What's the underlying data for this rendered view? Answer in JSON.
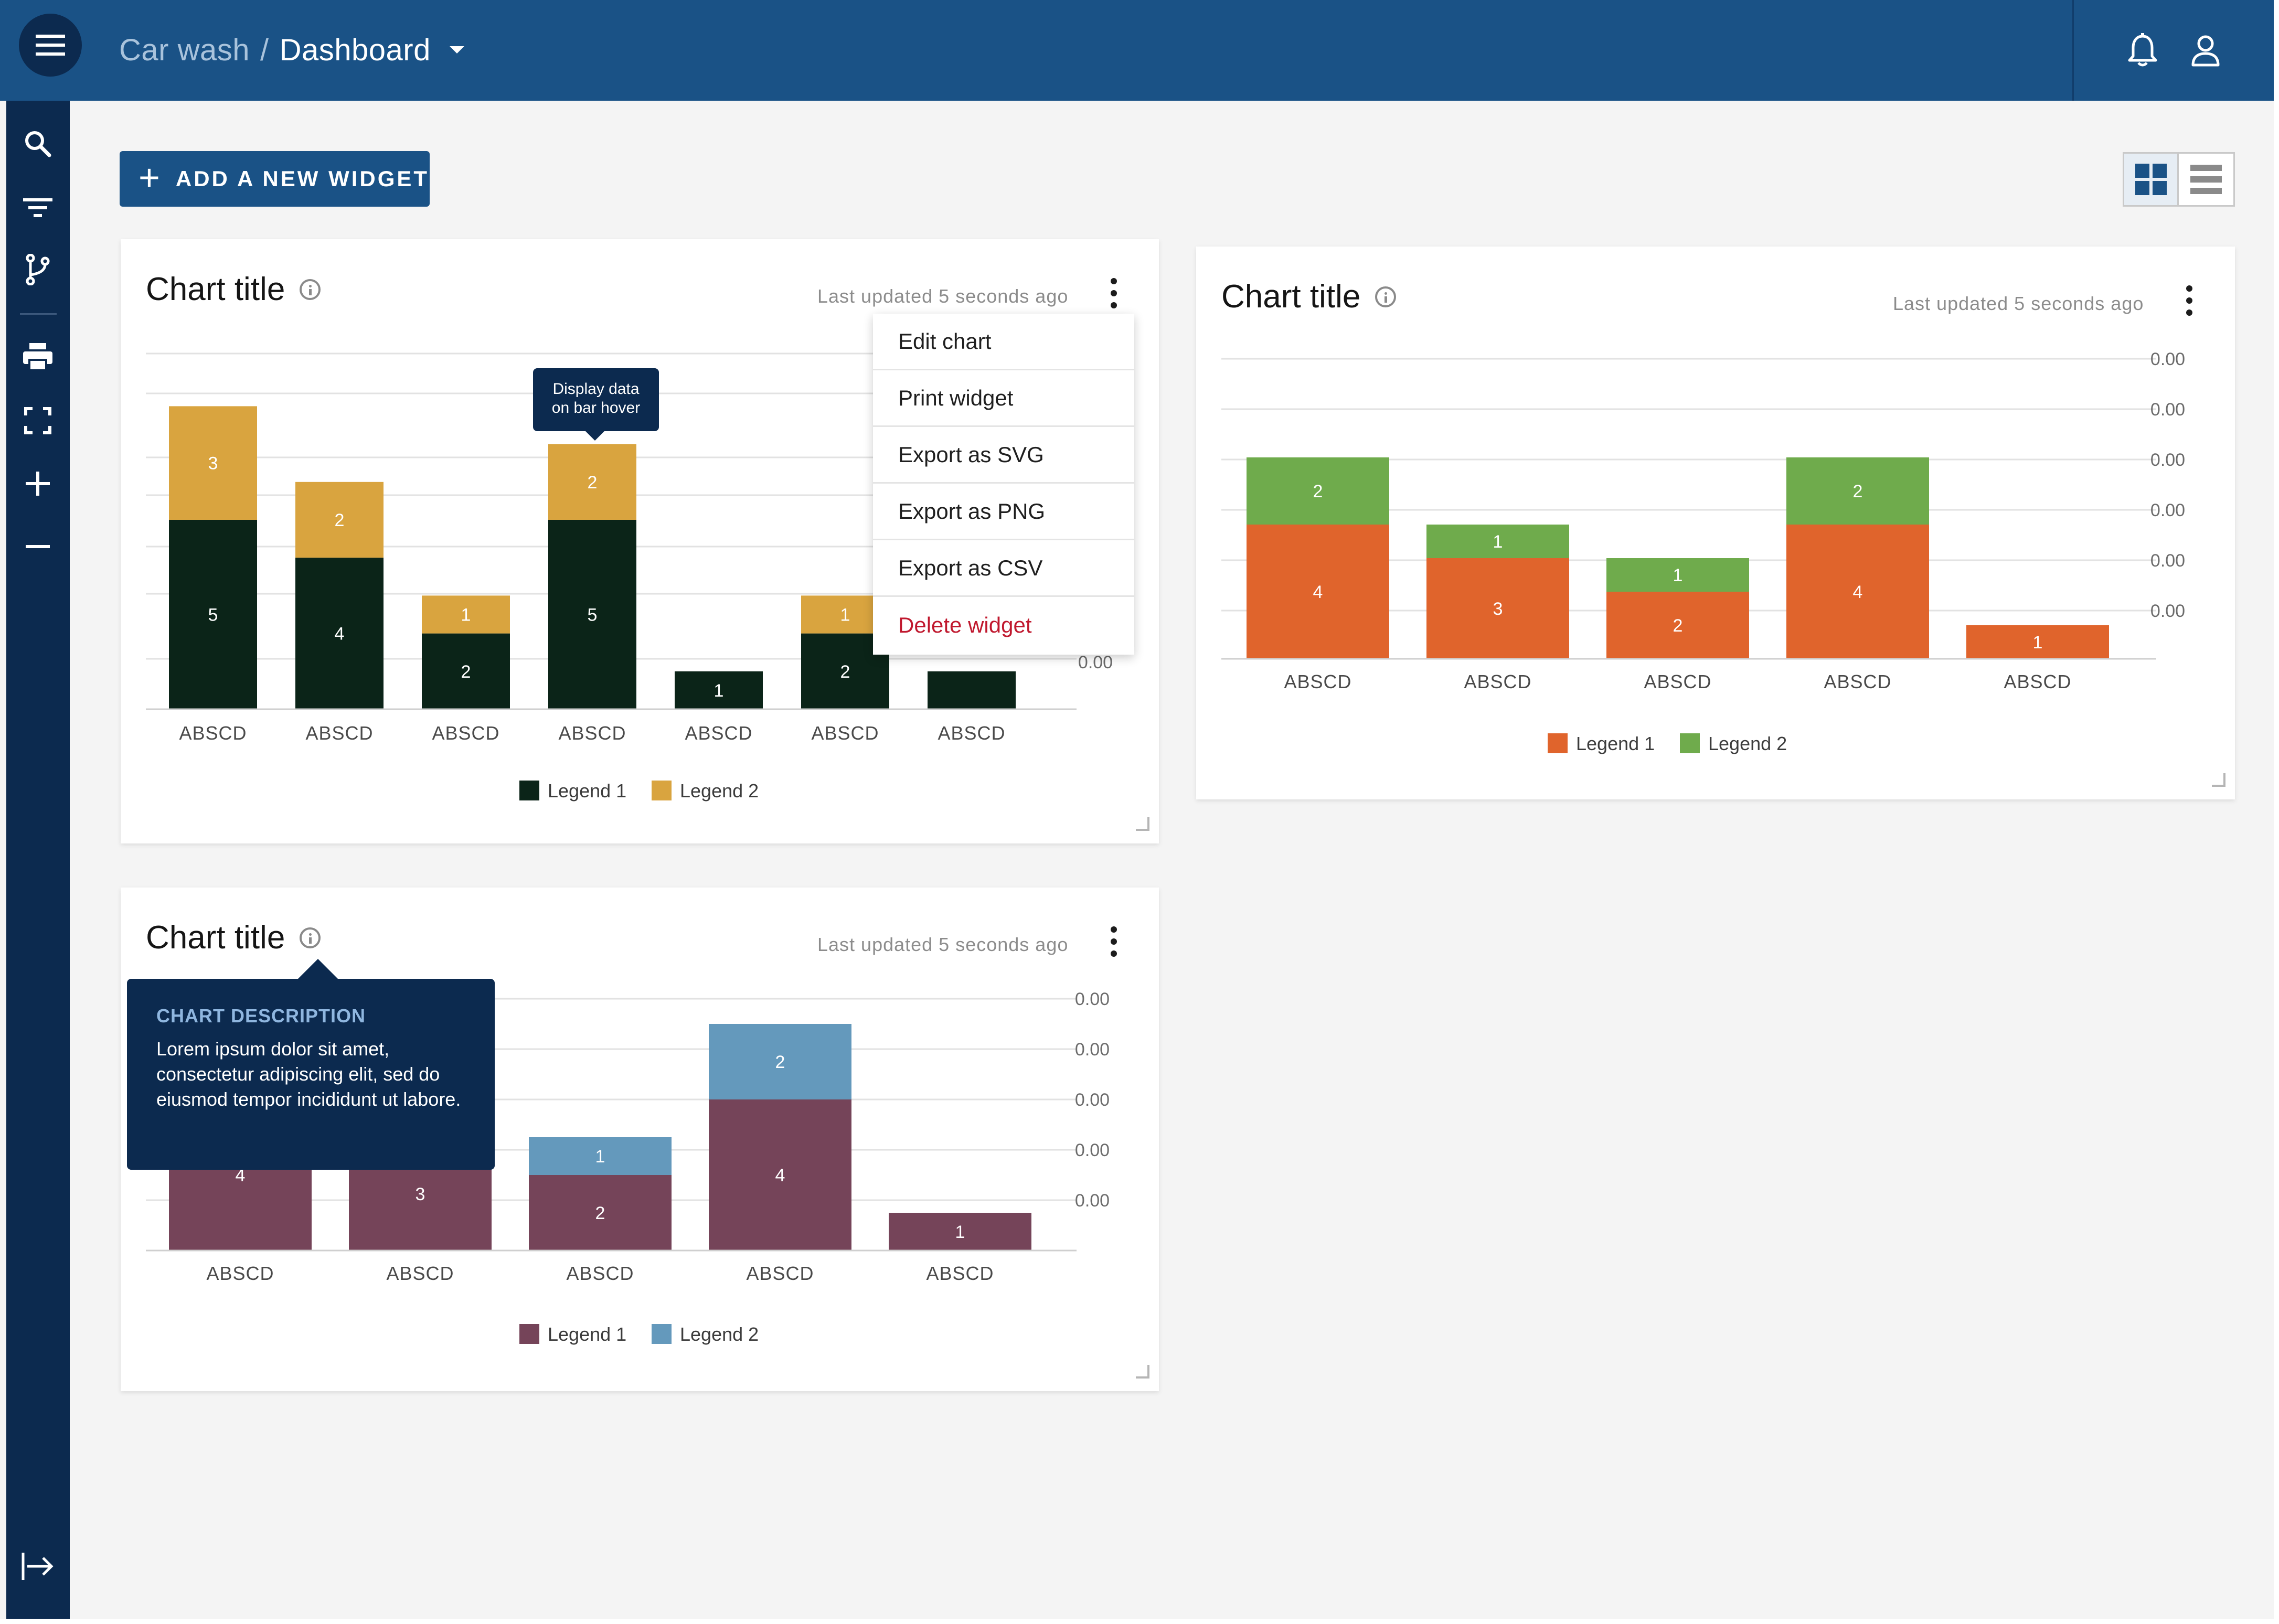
{
  "header": {
    "breadcrumb_parent": "Car wash",
    "breadcrumb_separator": "/",
    "breadcrumb_current": "Dashboard",
    "menu_icon": "hamburger-menu-icon",
    "right_icons": [
      "bell-icon",
      "user-icon"
    ]
  },
  "sidebar": {
    "items": [
      {
        "icon": "search-icon"
      },
      {
        "icon": "filter-icon"
      },
      {
        "icon": "branch-icon"
      },
      {
        "icon": "printer-icon"
      },
      {
        "icon": "fullscreen-icon"
      },
      {
        "icon": "plus-icon"
      },
      {
        "icon": "minus-icon"
      }
    ],
    "bottom_icon": "expand-sidebar-icon"
  },
  "toolbar": {
    "add_widget_label": "ADD A NEW WIDGET",
    "view_modes": [
      "grid-view-icon",
      "list-view-icon"
    ],
    "active_view": "grid"
  },
  "colors": {
    "topbar": "#1a5286",
    "sidebar": "#0c2a4f",
    "danger": "#c0182e"
  },
  "widgets": [
    {
      "title": "Chart title",
      "updated": "Last updated 5 seconds ago"
    },
    {
      "title": "Chart title",
      "updated": "Last updated 5 seconds ago"
    },
    {
      "title": "Chart title",
      "updated": "Last updated 5 seconds ago"
    }
  ],
  "context_menu": {
    "items": [
      "Edit chart",
      "Print widget",
      "Export as SVG",
      "Export as PNG",
      "Export as CSV",
      "Delete widget"
    ]
  },
  "bar_tooltip": {
    "line1": "Display data",
    "line2": "on bar hover"
  },
  "description_popover": {
    "title": "CHART DESCRIPTION",
    "text": "Lorem ipsum dolor sit amet, consectetur adipiscing elit, sed do eiusmod tempor incididunt ut labore."
  },
  "chart_data": [
    {
      "type": "bar",
      "stacked": true,
      "categories": [
        "ABSCD",
        "ABSCD",
        "ABSCD",
        "ABSCD",
        "ABSCD",
        "ABSCD",
        "ABSCD"
      ],
      "series": [
        {
          "name": "Legend 1",
          "color": "#0b2418",
          "values": [
            5,
            4,
            2,
            5,
            1,
            2,
            1
          ]
        },
        {
          "name": "Legend 2",
          "color": "#d9a43f",
          "values": [
            3,
            2,
            1,
            2,
            0,
            1,
            0
          ]
        }
      ],
      "value_labels_visible": [
        [
          true,
          true,
          true,
          true,
          true,
          true,
          false
        ],
        [
          true,
          true,
          true,
          true,
          false,
          true,
          false
        ]
      ],
      "y_tick_labels": [
        "0.00"
      ],
      "ylim": [
        0,
        9
      ],
      "legend_position": "bottom-center",
      "grid": true
    },
    {
      "type": "bar",
      "stacked": true,
      "categories": [
        "ABSCD",
        "ABSCD",
        "ABSCD",
        "ABSCD",
        "ABSCD"
      ],
      "series": [
        {
          "name": "Legend 1",
          "color": "#e0642c",
          "values": [
            4,
            3,
            2,
            4,
            1
          ]
        },
        {
          "name": "Legend 2",
          "color": "#6fab4c",
          "values": [
            2,
            1,
            1,
            2,
            0
          ]
        }
      ],
      "y_tick_labels": [
        "0.00",
        "0.00",
        "0.00",
        "0.00",
        "0.00",
        "0.00"
      ],
      "ylim": [
        0,
        6.3
      ],
      "legend_position": "bottom-center",
      "grid": true
    },
    {
      "type": "bar",
      "stacked": true,
      "categories": [
        "ABSCD",
        "ABSCD",
        "ABSCD",
        "ABSCD",
        "ABSCD"
      ],
      "series": [
        {
          "name": "Legend 1",
          "color": "#754459",
          "values": [
            4,
            3,
            2,
            4,
            1
          ]
        },
        {
          "name": "Legend 2",
          "color": "#6499bc",
          "values": [
            0,
            0,
            1,
            2,
            0
          ]
        }
      ],
      "y_tick_labels": [
        "0.00",
        "0.00",
        "0.00",
        "0.00",
        "0.00"
      ],
      "ylim": [
        0,
        6
      ],
      "legend_position": "bottom-center",
      "grid": true
    }
  ]
}
